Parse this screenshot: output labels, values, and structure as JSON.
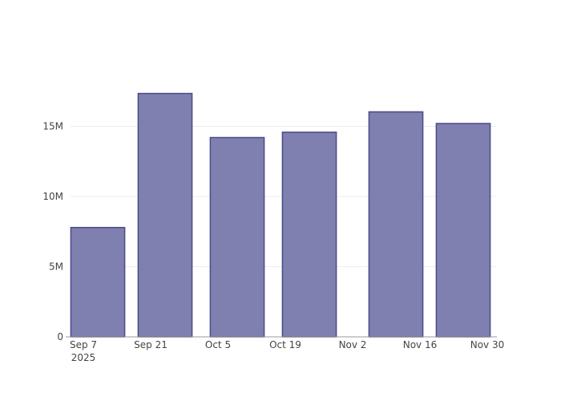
{
  "chart_data": {
    "type": "bar",
    "title": "",
    "xlabel": "",
    "ylabel": "",
    "x": [
      "2025-09-10",
      "2025-09-24",
      "2025-10-09",
      "2025-10-24",
      "2025-11-11",
      "2025-11-25"
    ],
    "values": [
      7790000,
      17340000,
      14200000,
      14580000,
      16030000,
      15200000
    ],
    "xlim": [
      "2025-09-04T08:00",
      "2025-12-02"
    ],
    "ylim": [
      0,
      20000000
    ],
    "x_ticks": [
      {
        "date": "2025-09-07",
        "label": "Sep 7",
        "sublabel": "2025"
      },
      {
        "date": "2025-09-21",
        "label": "Sep 21"
      },
      {
        "date": "2025-10-05",
        "label": "Oct 5"
      },
      {
        "date": "2025-10-19",
        "label": "Oct 19"
      },
      {
        "date": "2025-11-02",
        "label": "Nov 2"
      },
      {
        "date": "2025-11-16",
        "label": "Nov 16"
      },
      {
        "date": "2025-11-30",
        "label": "Nov 30"
      }
    ],
    "y_ticks": [
      {
        "value": 0,
        "label": "0"
      },
      {
        "value": 5000000,
        "label": "5M"
      },
      {
        "value": 10000000,
        "label": "10M"
      },
      {
        "value": 15000000,
        "label": "15M"
      }
    ],
    "bar_width_days": 11.2,
    "grid": true,
    "colors": {
      "fill": "#7f7fb0",
      "stroke": "#4b4a8a",
      "grid": "#eeeeee",
      "axis": "#999999"
    }
  }
}
